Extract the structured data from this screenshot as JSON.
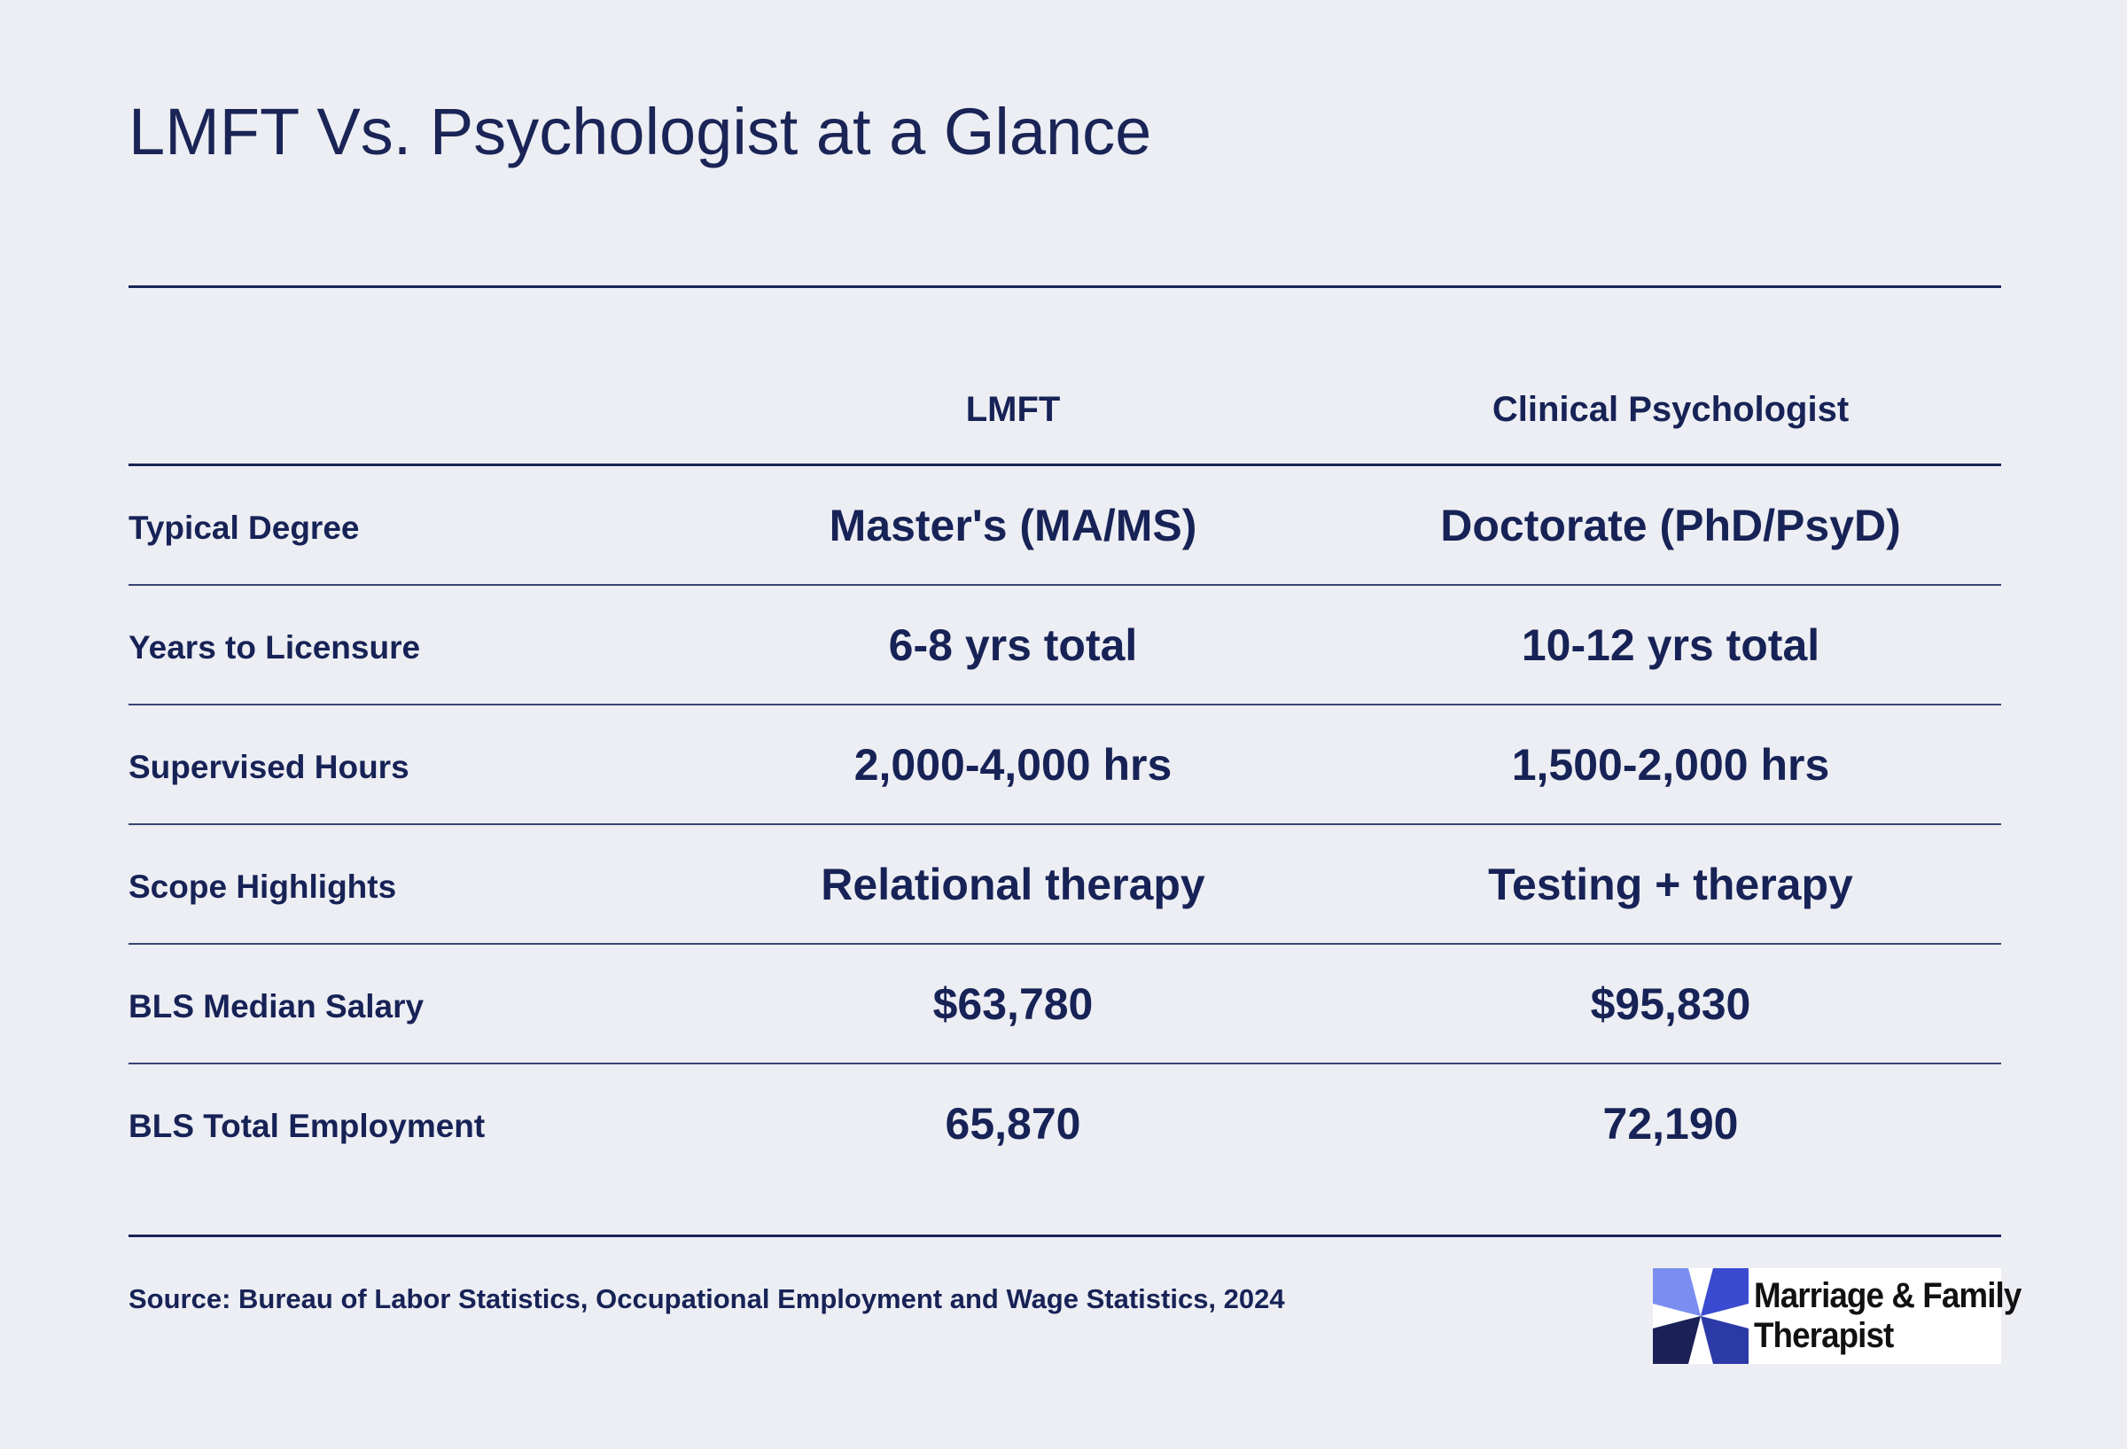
{
  "title": "LMFT Vs. Psychologist at a Glance",
  "colors": {
    "background": "#eceef3",
    "text": "#172256",
    "rule": "#1a2456",
    "logo_light": "#7b8ef0",
    "logo_mid": "#3a4bd1",
    "logo_dark": "#1b2156"
  },
  "table": {
    "columns": [
      "LMFT",
      "Clinical Psychologist"
    ],
    "rows": [
      {
        "label": "Typical Degree",
        "values": [
          "Master's (MA/MS)",
          "Doctorate (PhD/PsyD)"
        ]
      },
      {
        "label": "Years to Licensure",
        "values": [
          "6-8 yrs total",
          "10-12 yrs total"
        ]
      },
      {
        "label": "Supervised Hours",
        "values": [
          "2,000-4,000 hrs",
          "1,500-2,000 hrs"
        ]
      },
      {
        "label": "Scope Highlights",
        "values": [
          "Relational therapy",
          "Testing + therapy"
        ]
      },
      {
        "label": "BLS Median Salary",
        "values": [
          "$63,780",
          "$95,830"
        ]
      },
      {
        "label": "BLS Total Employment",
        "values": [
          "65,870",
          "72,190"
        ]
      }
    ]
  },
  "source": "Source: Bureau of Labor Statistics, Occupational Employment and Wage Statistics, 2024",
  "logo": {
    "line1": "Marriage & Family",
    "line2": "Therapist",
    "icon": "pinwheel-logo-icon"
  }
}
